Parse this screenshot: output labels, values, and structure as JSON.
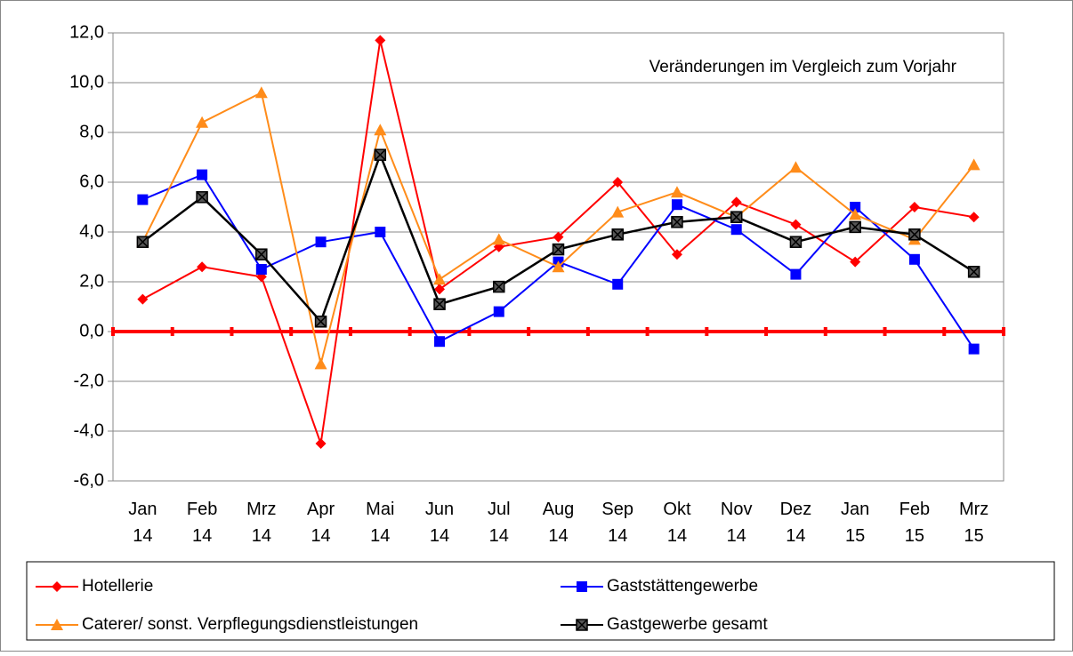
{
  "chart_data": {
    "type": "line",
    "annotation": "Veränderungen im Vergleich zum Vorjahr",
    "categories": [
      [
        "Jan",
        "14"
      ],
      [
        "Feb",
        "14"
      ],
      [
        "Mrz",
        "14"
      ],
      [
        "Apr",
        "14"
      ],
      [
        "Mai",
        "14"
      ],
      [
        "Jun",
        "14"
      ],
      [
        "Jul",
        "14"
      ],
      [
        "Aug",
        "14"
      ],
      [
        "Sep",
        "14"
      ],
      [
        "Okt",
        "14"
      ],
      [
        "Nov",
        "14"
      ],
      [
        "Dez",
        "14"
      ],
      [
        "Jan",
        "15"
      ],
      [
        "Feb",
        "15"
      ],
      [
        "Mrz",
        "15"
      ]
    ],
    "series": [
      {
        "name": "Hotellerie",
        "color": "#ff0000",
        "marker": "diamond",
        "values": [
          1.3,
          2.6,
          2.2,
          -4.5,
          11.7,
          1.7,
          3.4,
          3.8,
          6.0,
          3.1,
          5.2,
          4.3,
          2.8,
          5.0,
          4.6
        ]
      },
      {
        "name": "Gaststättengewerbe",
        "color": "#0000ff",
        "marker": "square",
        "values": [
          5.3,
          6.3,
          2.5,
          3.6,
          4.0,
          -0.4,
          0.8,
          2.8,
          1.9,
          5.1,
          4.1,
          2.3,
          5.0,
          2.9,
          -0.7
        ]
      },
      {
        "name": "Caterer/ sonst. Verpflegungsdienstleistungen",
        "color": "#ff8c1a",
        "marker": "triangle",
        "values": [
          3.6,
          8.4,
          9.6,
          -1.3,
          8.1,
          2.1,
          3.7,
          2.6,
          4.8,
          5.6,
          4.6,
          6.6,
          4.7,
          3.7,
          6.7
        ]
      },
      {
        "name": "Gastgewerbe gesamt",
        "color": "#000000",
        "marker": "xsquare",
        "values": [
          3.6,
          5.4,
          3.1,
          0.4,
          7.1,
          1.1,
          1.8,
          3.3,
          3.9,
          4.4,
          4.6,
          3.6,
          4.2,
          3.9,
          2.4
        ]
      }
    ],
    "ylim": [
      -6,
      12
    ],
    "yticks": [
      {
        "value": -6,
        "label": "-6,0"
      },
      {
        "value": -4,
        "label": "-4,0"
      },
      {
        "value": -2,
        "label": "-2,0"
      },
      {
        "value": 0,
        "label": "0,0"
      },
      {
        "value": 2,
        "label": "2,0"
      },
      {
        "value": 4,
        "label": "4,0"
      },
      {
        "value": 6,
        "label": "6,0"
      },
      {
        "value": 8,
        "label": "8,0"
      },
      {
        "value": 10,
        "label": "10,0"
      },
      {
        "value": 12,
        "label": "12,0"
      }
    ],
    "grid": true,
    "zero_line_color": "#ff0000"
  }
}
